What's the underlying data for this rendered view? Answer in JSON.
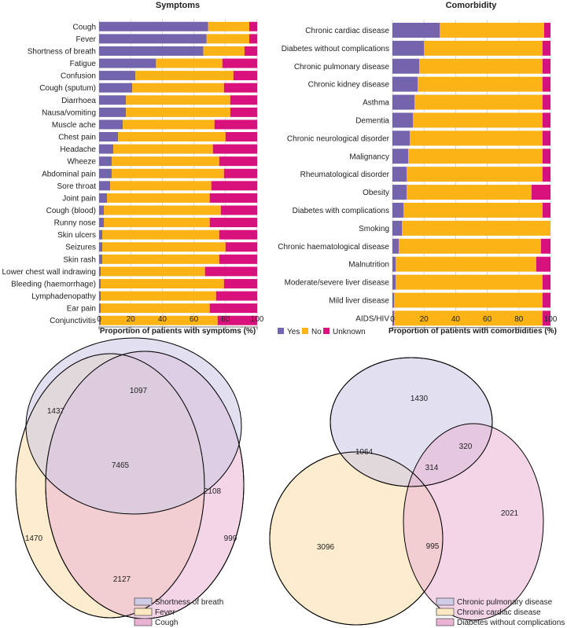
{
  "colors": {
    "yes": "#7464ad",
    "no": "#fbb315",
    "unknown": "#d9117c",
    "grid": "#cfcfcf",
    "venn_purple": "#cfcae6",
    "venn_yellow": "#fde8c2",
    "venn_pink": "#eab3d4",
    "venn_stroke": "#000000",
    "text": "#222222"
  },
  "chart_data": [
    {
      "id": "symptoms",
      "type": "bar",
      "orientation": "horizontal-stacked",
      "title": "Symptoms",
      "xlabel": "Proportion of patients with symptoms (%)",
      "xlim": [
        0,
        100
      ],
      "xticks": [
        "0",
        "20",
        "40",
        "60",
        "80",
        "100"
      ],
      "grid": true,
      "categories": [
        "Cough",
        "Fever",
        "Shortness of breath",
        "Fatigue",
        "Confusion",
        "Cough (sputum)",
        "Diarrhoea",
        "Nausa/vomiting",
        "Muscle ache",
        "Chest pain",
        "Headache",
        "Wheeze",
        "Abdominal pain",
        "Sore throat",
        "Joint pain",
        "Cough (blood)",
        "Runny nose",
        "Skin ulcers",
        "Seizures",
        "Skin rash",
        "Lower chest wall indrawing",
        "Bleeding (haemorrhage)",
        "Lymphadenopathy",
        "Ear pain",
        "Conjunctivitis"
      ],
      "series": [
        {
          "name": "Yes",
          "values": [
            69,
            68,
            66,
            36,
            23,
            21,
            17,
            17,
            15,
            12,
            9,
            8,
            8,
            7,
            5,
            3,
            3,
            2,
            2,
            2,
            1,
            1,
            1,
            1,
            1
          ]
        },
        {
          "name": "No",
          "values": [
            26,
            27,
            26,
            42,
            62,
            58,
            66,
            66,
            58,
            68,
            63,
            68,
            71,
            64,
            65,
            74,
            67,
            74,
            78,
            74,
            66,
            78,
            73,
            69,
            74
          ]
        },
        {
          "name": "Unknown",
          "values": [
            5,
            5,
            8,
            22,
            15,
            21,
            17,
            17,
            27,
            20,
            28,
            24,
            21,
            29,
            30,
            23,
            30,
            24,
            20,
            24,
            33,
            21,
            26,
            30,
            25
          ]
        }
      ]
    },
    {
      "id": "comorbidity",
      "type": "bar",
      "orientation": "horizontal-stacked",
      "title": "Comorbidity",
      "xlabel": "Proportion of patients with comorbidities (%)",
      "xlim": [
        0,
        100
      ],
      "xticks": [
        "0",
        "20",
        "40",
        "60",
        "80",
        "100"
      ],
      "grid": true,
      "categories": [
        "Chronic cardiac disease",
        "Diabetes without complications",
        "Chronic pulmonary disease",
        "Chronic kidney disease",
        "Asthma",
        "Dementia",
        "Chronic neurological disorder",
        "Malignancy",
        "Rheumatological disorder",
        "Obesity",
        "Diabetes with complications",
        "Smoking",
        "Chronic haematological disease",
        "Malnutrition",
        "Moderate/severe liver disease",
        "Mild liver disease",
        "AIDS/HIV"
      ],
      "series": [
        {
          "name": "Yes",
          "values": [
            30,
            20,
            17,
            16,
            14,
            13,
            11,
            10,
            9,
            9,
            7,
            6,
            4,
            2,
            2,
            1,
            1
          ]
        },
        {
          "name": "No",
          "values": [
            66,
            75,
            78,
            79,
            81,
            82,
            84,
            85,
            86,
            79,
            88,
            94,
            90,
            89,
            93,
            94,
            94
          ]
        },
        {
          "name": "Unknown",
          "values": [
            4,
            5,
            5,
            5,
            5,
            5,
            5,
            5,
            5,
            12,
            5,
            0,
            6,
            9,
            5,
            5,
            5
          ]
        }
      ]
    },
    {
      "id": "venn-symptoms",
      "type": "venn",
      "sets": [
        "Shortness of breath",
        "Fever",
        "Cough"
      ],
      "regions": [
        {
          "sets": [
            "Shortness of breath"
          ],
          "value": 1097
        },
        {
          "sets": [
            "Fever"
          ],
          "value": 1470
        },
        {
          "sets": [
            "Cough"
          ],
          "value": 999
        },
        {
          "sets": [
            "Shortness of breath",
            "Fever"
          ],
          "value": 1437
        },
        {
          "sets": [
            "Shortness of breath",
            "Cough"
          ],
          "value": 2108
        },
        {
          "sets": [
            "Fever",
            "Cough"
          ],
          "value": 2127
        },
        {
          "sets": [
            "Shortness of breath",
            "Fever",
            "Cough"
          ],
          "value": 7465
        }
      ]
    },
    {
      "id": "venn-comorbidity",
      "type": "venn",
      "sets": [
        "Chronic pulmonary disease",
        "Chronic cardiac disease",
        "Diabetes without complications"
      ],
      "regions": [
        {
          "sets": [
            "Chronic pulmonary disease"
          ],
          "value": 1430
        },
        {
          "sets": [
            "Chronic cardiac disease"
          ],
          "value": 3096
        },
        {
          "sets": [
            "Diabetes without complications"
          ],
          "value": 2021
        },
        {
          "sets": [
            "Chronic pulmonary disease",
            "Chronic cardiac disease"
          ],
          "value": 1064
        },
        {
          "sets": [
            "Chronic pulmonary disease",
            "Diabetes without complications"
          ],
          "value": 320
        },
        {
          "sets": [
            "Chronic cardiac disease",
            "Diabetes without complications"
          ],
          "value": 995
        },
        {
          "sets": [
            "Chronic pulmonary disease",
            "Chronic cardiac disease",
            "Diabetes without complications"
          ],
          "value": 314
        }
      ]
    }
  ]
}
